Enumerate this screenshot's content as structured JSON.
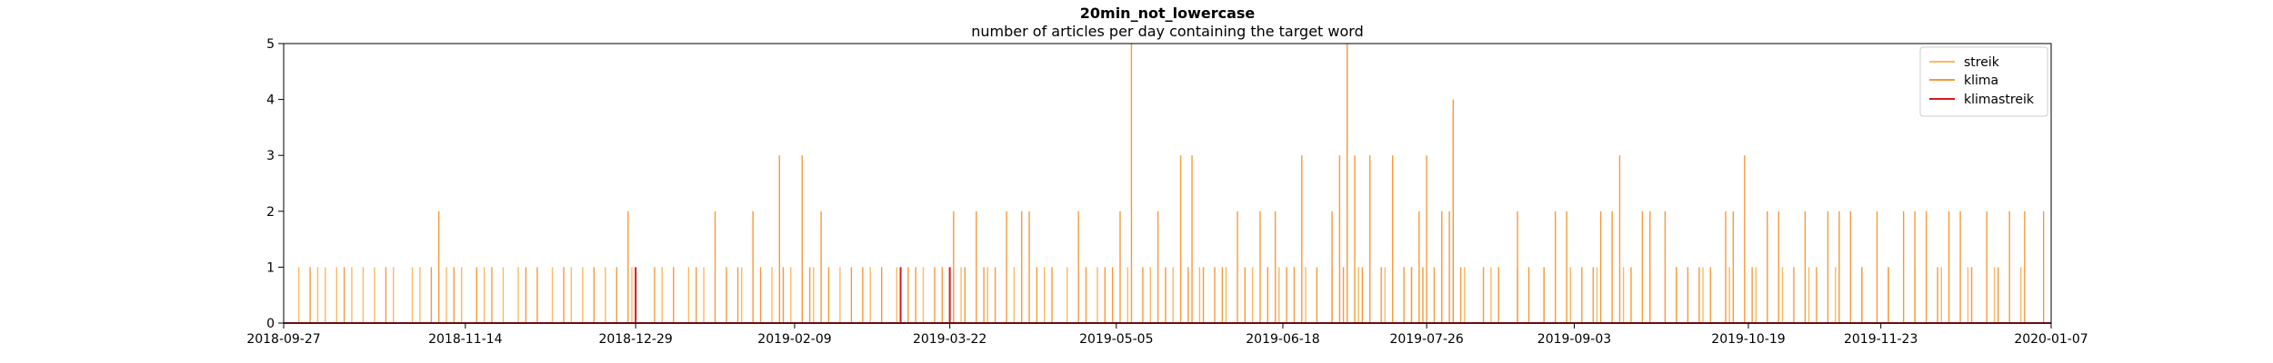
{
  "chart_data": {
    "type": "line",
    "title": "20min_not_lowercase",
    "subtitle": "number of articles per day containing the target word",
    "xlabel": "",
    "ylabel": "",
    "xlim": [
      "2018-09-27",
      "2020-01-07"
    ],
    "ylim": [
      0,
      5
    ],
    "x_ticks": [
      "2018-09-27",
      "2018-11-14",
      "2018-12-29",
      "2019-02-09",
      "2019-03-22",
      "2019-05-05",
      "2019-06-18",
      "2019-07-26",
      "2019-09-03",
      "2019-10-19",
      "2019-11-23",
      "2020-01-07"
    ],
    "y_ticks": [
      0,
      1,
      2,
      3,
      4,
      5
    ],
    "grid": false,
    "legend_position": "top-right",
    "series_colors": {
      "streik": "#fdb863",
      "klima": "#f59a3a",
      "klimastreik": "#d7191c"
    },
    "series": [
      {
        "name": "streik",
        "spikes": [
          [
            "2018-10-01",
            1
          ],
          [
            "2018-10-06",
            1
          ],
          [
            "2018-10-08",
            1
          ],
          [
            "2018-10-11",
            1
          ],
          [
            "2018-10-15",
            1
          ],
          [
            "2018-10-18",
            1
          ],
          [
            "2018-10-21",
            1
          ],
          [
            "2018-10-26",
            1
          ],
          [
            "2018-10-31",
            1
          ],
          [
            "2018-11-02",
            1
          ],
          [
            "2018-11-09",
            1
          ],
          [
            "2018-11-13",
            1
          ],
          [
            "2018-11-19",
            1
          ],
          [
            "2018-11-24",
            1
          ],
          [
            "2018-11-28",
            1
          ],
          [
            "2018-12-07",
            1
          ],
          [
            "2018-12-12",
            1
          ],
          [
            "2018-12-15",
            1
          ],
          [
            "2018-12-21",
            1
          ],
          [
            "2018-12-28",
            1
          ],
          [
            "2019-01-05",
            1
          ],
          [
            "2019-01-12",
            1
          ],
          [
            "2019-01-16",
            1
          ],
          [
            "2019-01-26",
            1
          ],
          [
            "2019-02-03",
            1
          ],
          [
            "2019-02-08",
            1
          ],
          [
            "2019-02-14",
            1
          ],
          [
            "2019-02-21",
            1
          ],
          [
            "2019-03-01",
            1
          ],
          [
            "2019-03-08",
            1
          ],
          [
            "2019-03-15",
            1
          ],
          [
            "2019-03-25",
            1
          ],
          [
            "2019-04-01",
            1
          ],
          [
            "2019-04-08",
            1
          ],
          [
            "2019-04-16",
            1
          ],
          [
            "2019-04-22",
            1
          ],
          [
            "2019-04-30",
            1
          ],
          [
            "2019-05-08",
            1
          ],
          [
            "2019-05-14",
            1
          ],
          [
            "2019-05-20",
            1
          ],
          [
            "2019-05-27",
            1
          ],
          [
            "2019-06-03",
            1
          ],
          [
            "2019-06-10",
            1
          ],
          [
            "2019-06-17",
            1
          ],
          [
            "2019-06-24",
            1
          ],
          [
            "2019-07-01",
            1
          ],
          [
            "2019-07-08",
            1
          ],
          [
            "2019-07-15",
            1
          ],
          [
            "2019-07-22",
            1
          ],
          [
            "2019-07-30",
            1
          ],
          [
            "2019-08-05",
            1
          ],
          [
            "2019-08-12",
            1
          ],
          [
            "2019-08-19",
            1
          ],
          [
            "2019-08-26",
            1
          ],
          [
            "2019-09-02",
            1
          ],
          [
            "2019-09-09",
            1
          ],
          [
            "2019-09-16",
            1
          ],
          [
            "2019-09-23",
            1
          ],
          [
            "2019-09-30",
            1
          ],
          [
            "2019-10-07",
            1
          ],
          [
            "2019-10-14",
            1
          ],
          [
            "2019-10-21",
            1
          ],
          [
            "2019-10-28",
            1
          ],
          [
            "2019-11-04",
            1
          ],
          [
            "2019-11-11",
            1
          ],
          [
            "2019-11-18",
            1
          ],
          [
            "2019-11-25",
            1
          ],
          [
            "2019-12-02",
            1
          ],
          [
            "2019-12-09",
            1
          ],
          [
            "2019-12-16",
            1
          ],
          [
            "2019-12-23",
            1
          ],
          [
            "2019-12-30",
            1
          ]
        ]
      },
      {
        "name": "klima",
        "spikes": [
          [
            "2018-10-04",
            1
          ],
          [
            "2018-10-13",
            1
          ],
          [
            "2018-10-24",
            1
          ],
          [
            "2018-11-05",
            1
          ],
          [
            "2018-11-07",
            2
          ],
          [
            "2018-11-11",
            1
          ],
          [
            "2018-11-17",
            1
          ],
          [
            "2018-11-21",
            1
          ],
          [
            "2018-11-30",
            1
          ],
          [
            "2018-12-03",
            1
          ],
          [
            "2018-12-10",
            1
          ],
          [
            "2018-12-18",
            1
          ],
          [
            "2018-12-24",
            1
          ],
          [
            "2018-12-27",
            2
          ],
          [
            "2019-01-03",
            1
          ],
          [
            "2019-01-08",
            1
          ],
          [
            "2019-01-14",
            1
          ],
          [
            "2019-01-19",
            2
          ],
          [
            "2019-01-22",
            1
          ],
          [
            "2019-01-25",
            1
          ],
          [
            "2019-01-29",
            2
          ],
          [
            "2019-01-31",
            1
          ],
          [
            "2019-02-05",
            3
          ],
          [
            "2019-02-06",
            1
          ],
          [
            "2019-02-11",
            3
          ],
          [
            "2019-02-13",
            1
          ],
          [
            "2019-02-16",
            2
          ],
          [
            "2019-02-18",
            1
          ],
          [
            "2019-02-24",
            1
          ],
          [
            "2019-02-27",
            1
          ],
          [
            "2019-03-04",
            1
          ],
          [
            "2019-03-11",
            1
          ],
          [
            "2019-03-13",
            1
          ],
          [
            "2019-03-18",
            1
          ],
          [
            "2019-03-20",
            1
          ],
          [
            "2019-03-23",
            2
          ],
          [
            "2019-03-26",
            1
          ],
          [
            "2019-03-29",
            2
          ],
          [
            "2019-03-31",
            1
          ],
          [
            "2019-04-03",
            1
          ],
          [
            "2019-04-06",
            2
          ],
          [
            "2019-04-10",
            2
          ],
          [
            "2019-04-12",
            2
          ],
          [
            "2019-04-14",
            1
          ],
          [
            "2019-04-18",
            1
          ],
          [
            "2019-04-25",
            2
          ],
          [
            "2019-04-27",
            1
          ],
          [
            "2019-05-02",
            1
          ],
          [
            "2019-05-04",
            1
          ],
          [
            "2019-05-06",
            2
          ],
          [
            "2019-05-09",
            5
          ],
          [
            "2019-05-12",
            1
          ],
          [
            "2019-05-16",
            2
          ],
          [
            "2019-05-18",
            1
          ],
          [
            "2019-05-22",
            3
          ],
          [
            "2019-05-24",
            1
          ],
          [
            "2019-05-25",
            3
          ],
          [
            "2019-05-28",
            1
          ],
          [
            "2019-05-31",
            1
          ],
          [
            "2019-06-02",
            1
          ],
          [
            "2019-06-06",
            2
          ],
          [
            "2019-06-08",
            1
          ],
          [
            "2019-06-12",
            2
          ],
          [
            "2019-06-14",
            1
          ],
          [
            "2019-06-16",
            2
          ],
          [
            "2019-06-19",
            1
          ],
          [
            "2019-06-21",
            1
          ],
          [
            "2019-06-23",
            3
          ],
          [
            "2019-06-27",
            1
          ],
          [
            "2019-07-01",
            2
          ],
          [
            "2019-07-03",
            3
          ],
          [
            "2019-07-04",
            1
          ],
          [
            "2019-07-05",
            5
          ],
          [
            "2019-07-07",
            3
          ],
          [
            "2019-07-09",
            1
          ],
          [
            "2019-07-11",
            3
          ],
          [
            "2019-07-14",
            1
          ],
          [
            "2019-07-17",
            3
          ],
          [
            "2019-07-20",
            1
          ],
          [
            "2019-07-22",
            1
          ],
          [
            "2019-07-24",
            2
          ],
          [
            "2019-07-25",
            1
          ],
          [
            "2019-07-26",
            3
          ],
          [
            "2019-07-28",
            1
          ],
          [
            "2019-07-30",
            2
          ],
          [
            "2019-08-01",
            2
          ],
          [
            "2019-08-02",
            4
          ],
          [
            "2019-08-04",
            1
          ],
          [
            "2019-08-10",
            1
          ],
          [
            "2019-08-14",
            1
          ],
          [
            "2019-08-19",
            2
          ],
          [
            "2019-08-22",
            1
          ],
          [
            "2019-08-26",
            1
          ],
          [
            "2019-08-29",
            2
          ],
          [
            "2019-09-01",
            2
          ],
          [
            "2019-09-05",
            1
          ],
          [
            "2019-09-08",
            1
          ],
          [
            "2019-09-10",
            2
          ],
          [
            "2019-09-13",
            2
          ],
          [
            "2019-09-15",
            3
          ],
          [
            "2019-09-18",
            1
          ],
          [
            "2019-09-21",
            2
          ],
          [
            "2019-09-23",
            2
          ],
          [
            "2019-09-27",
            2
          ],
          [
            "2019-09-30",
            1
          ],
          [
            "2019-10-03",
            1
          ],
          [
            "2019-10-06",
            1
          ],
          [
            "2019-10-09",
            1
          ],
          [
            "2019-10-13",
            2
          ],
          [
            "2019-10-15",
            2
          ],
          [
            "2019-10-18",
            3
          ],
          [
            "2019-10-20",
            1
          ],
          [
            "2019-10-24",
            2
          ],
          [
            "2019-10-27",
            2
          ],
          [
            "2019-10-31",
            1
          ],
          [
            "2019-11-03",
            2
          ],
          [
            "2019-11-06",
            1
          ],
          [
            "2019-11-09",
            2
          ],
          [
            "2019-11-12",
            2
          ],
          [
            "2019-11-15",
            2
          ],
          [
            "2019-11-18",
            1
          ],
          [
            "2019-11-22",
            2
          ],
          [
            "2019-11-25",
            1
          ],
          [
            "2019-11-29",
            2
          ],
          [
            "2019-12-02",
            2
          ],
          [
            "2019-12-05",
            2
          ],
          [
            "2019-12-08",
            1
          ],
          [
            "2019-12-11",
            2
          ],
          [
            "2019-12-14",
            2
          ],
          [
            "2019-12-17",
            1
          ],
          [
            "2019-12-21",
            2
          ],
          [
            "2019-12-24",
            1
          ],
          [
            "2019-12-27",
            2
          ],
          [
            "2019-12-31",
            2
          ],
          [
            "2020-01-05",
            2
          ]
        ]
      },
      {
        "name": "klimastreik",
        "spikes": [
          [
            "2018-12-29",
            1
          ],
          [
            "2019-03-09",
            1
          ],
          [
            "2019-03-22",
            1
          ]
        ]
      }
    ]
  }
}
